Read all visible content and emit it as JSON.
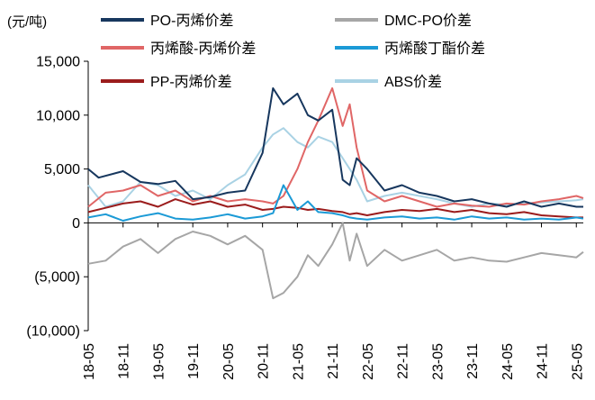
{
  "chart_data": {
    "type": "line",
    "unit_label": "(元/吨)",
    "y_ticks": [
      "15,000",
      "10,000",
      "5,000",
      "0",
      "(5,000)",
      "(10,000)"
    ],
    "y_tick_values": [
      15000,
      10000,
      5000,
      0,
      -5000,
      -10000
    ],
    "ylim": [
      -10000,
      15000
    ],
    "x_ticks": [
      "18-05",
      "18-11",
      "19-05",
      "19-11",
      "20-05",
      "20-11",
      "21-05",
      "21-11",
      "22-05",
      "22-11",
      "23-05",
      "23-11",
      "24-05",
      "24-11",
      "25-05"
    ],
    "legend_position": "top",
    "series": [
      {
        "name": "PO-丙烯价差",
        "color": "#17375e",
        "width": 3,
        "x": [
          0,
          0.3,
          1,
          1.5,
          2,
          2.5,
          3,
          3.5,
          4,
          4.5,
          5,
          5.3,
          5.6,
          6,
          6.3,
          6.6,
          7,
          7.3,
          7.5,
          7.7,
          8,
          8.5,
          9,
          9.5,
          10,
          10.5,
          11,
          11.5,
          12,
          12.5,
          13,
          13.5,
          14,
          14.2
        ],
        "values": [
          5000,
          4200,
          4800,
          3800,
          3600,
          3900,
          2200,
          2400,
          2800,
          3000,
          6500,
          12500,
          11000,
          12000,
          10000,
          9500,
          10500,
          4000,
          3500,
          6000,
          5000,
          3000,
          3500,
          2800,
          2500,
          2000,
          2200,
          1800,
          1500,
          2000,
          1500,
          1800,
          1500,
          1500
        ]
      },
      {
        "name": "DMC-PO价差",
        "color": "#a6a6a6",
        "width": 3,
        "x": [
          0,
          0.5,
          1,
          1.5,
          2,
          2.5,
          3,
          3.5,
          4,
          4.5,
          5,
          5.3,
          5.6,
          6,
          6.3,
          6.6,
          7,
          7.3,
          7.5,
          7.7,
          8,
          8.5,
          9,
          9.5,
          10,
          10.5,
          11,
          11.5,
          12,
          12.5,
          13,
          13.5,
          14,
          14.2
        ],
        "values": [
          -3800,
          -3500,
          -2200,
          -1500,
          -2800,
          -1500,
          -800,
          -1200,
          -2000,
          -1200,
          -2500,
          -7000,
          -6500,
          -5000,
          -3000,
          -4000,
          -2000,
          0,
          -3500,
          -1000,
          -4000,
          -2500,
          -3500,
          -3000,
          -2500,
          -3500,
          -3200,
          -3500,
          -3600,
          -3200,
          -2800,
          -3000,
          -3200,
          -2700
        ]
      },
      {
        "name": "丙烯酸-丙烯价差",
        "color": "#e06666",
        "width": 3,
        "x": [
          0,
          0.5,
          1,
          1.5,
          2,
          2.5,
          3,
          3.5,
          4,
          4.5,
          5,
          5.3,
          5.6,
          6,
          6.3,
          6.6,
          7,
          7.3,
          7.5,
          7.7,
          8,
          8.5,
          9,
          9.5,
          10,
          10.5,
          11,
          11.5,
          12,
          12.5,
          13,
          13.5,
          14,
          14.2
        ],
        "values": [
          1500,
          2800,
          3000,
          3500,
          2500,
          3000,
          2000,
          2500,
          2000,
          2200,
          2000,
          1800,
          2500,
          5000,
          7500,
          9500,
          12500,
          9000,
          11000,
          7000,
          3000,
          2000,
          2500,
          2000,
          1500,
          1800,
          1600,
          1500,
          1800,
          1700,
          2000,
          2200,
          2500,
          2300
        ]
      },
      {
        "name": "丙烯酸丁酯价差",
        "color": "#1b9ad6",
        "width": 3,
        "x": [
          0,
          0.5,
          1,
          1.5,
          2,
          2.5,
          3,
          3.5,
          4,
          4.5,
          5,
          5.3,
          5.6,
          6,
          6.3,
          6.6,
          7,
          7.3,
          7.5,
          7.7,
          8,
          8.5,
          9,
          9.5,
          10,
          10.5,
          11,
          11.5,
          12,
          12.5,
          13,
          13.5,
          14,
          14.2
        ],
        "values": [
          500,
          800,
          200,
          600,
          900,
          400,
          300,
          500,
          800,
          400,
          600,
          900,
          3500,
          1200,
          2000,
          1000,
          900,
          700,
          500,
          400,
          300,
          500,
          600,
          400,
          500,
          300,
          600,
          400,
          500,
          300,
          400,
          300,
          500,
          400
        ]
      },
      {
        "name": "PP-丙烯价差",
        "color": "#9b1c1c",
        "width": 3,
        "x": [
          0,
          0.5,
          1,
          1.5,
          2,
          2.5,
          3,
          3.5,
          4,
          4.5,
          5,
          5.3,
          5.6,
          6,
          6.3,
          6.6,
          7,
          7.3,
          7.5,
          7.7,
          8,
          8.5,
          9,
          9.5,
          10,
          10.5,
          11,
          11.5,
          12,
          12.5,
          13,
          13.5,
          14,
          14.2
        ],
        "values": [
          1000,
          1400,
          1800,
          2000,
          1500,
          2200,
          1700,
          2000,
          1500,
          1700,
          1200,
          1300,
          1500,
          1400,
          1200,
          1300,
          1100,
          1000,
          800,
          900,
          700,
          1000,
          1200,
          1100,
          1300,
          1000,
          1200,
          900,
          800,
          1000,
          700,
          600,
          500,
          500
        ]
      },
      {
        "name": "ABS价差",
        "color": "#a9d2e4",
        "width": 3,
        "x": [
          0,
          0.5,
          1,
          1.5,
          2,
          2.5,
          3,
          3.5,
          4,
          4.5,
          5,
          5.3,
          5.6,
          6,
          6.3,
          6.6,
          7,
          7.3,
          7.5,
          7.7,
          8,
          8.5,
          9,
          9.5,
          10,
          10.5,
          11,
          11.5,
          12,
          12.5,
          13,
          13.5,
          14,
          14.2
        ],
        "values": [
          3500,
          1500,
          2000,
          3800,
          3500,
          2500,
          3000,
          2200,
          3500,
          4500,
          7000,
          8200,
          8800,
          7500,
          7000,
          8000,
          7500,
          6000,
          5000,
          4000,
          2000,
          2500,
          2800,
          2500,
          2200,
          1800,
          1500,
          1800,
          1700,
          1800,
          1900,
          2000,
          2100,
          2200
        ]
      }
    ]
  }
}
